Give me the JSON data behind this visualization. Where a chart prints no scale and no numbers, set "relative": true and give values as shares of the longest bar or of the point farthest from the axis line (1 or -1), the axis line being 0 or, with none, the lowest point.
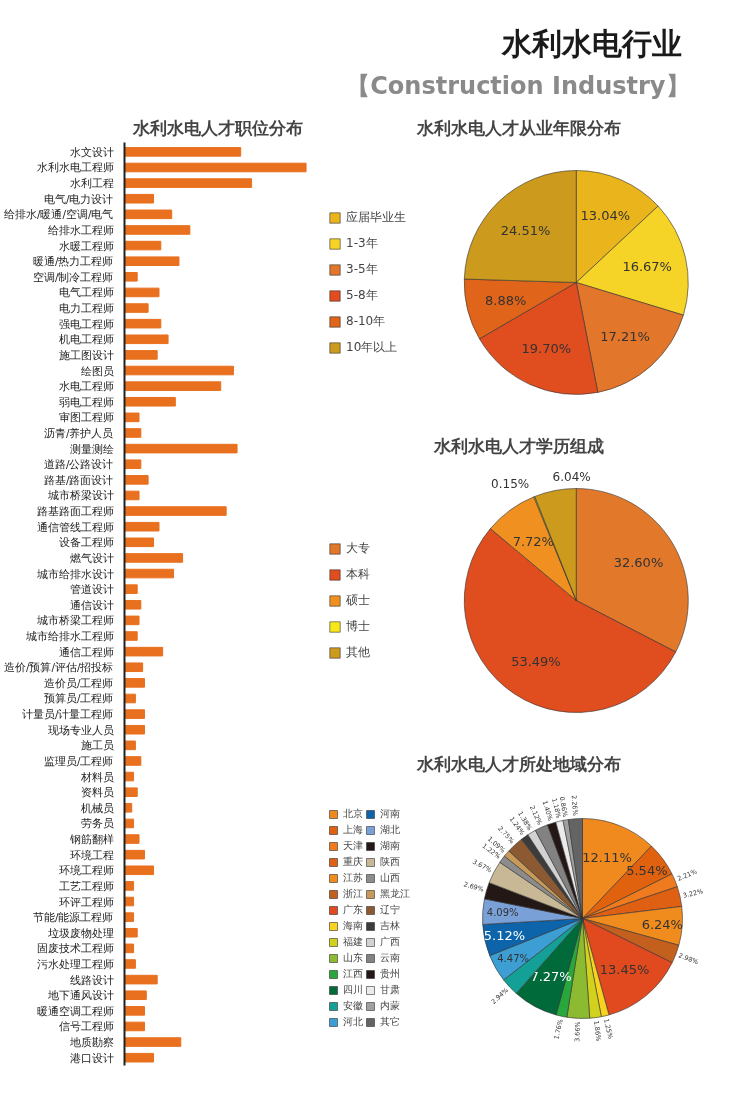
{
  "chart_data": [
    {
      "type": "other",
      "title": "水利水电行业",
      "subtitle": "【Construction Industry】"
    },
    {
      "type": "bar",
      "orientation": "horizontal",
      "relative": true,
      "title": "水利水电人才职位分布",
      "color": "#e8701e",
      "categories": [
        "水文设计",
        "水利水电工程师",
        "水利工程",
        "电气/电力设计",
        "给排水/暖通/空调/电气",
        "给排水工程师",
        "水暖工程师",
        "暖通/热力工程师",
        "空调/制冷工程师",
        "电气工程师",
        "电力工程师",
        "强电工程师",
        "机电工程师",
        "施工图设计",
        "绘图员",
        "水电工程师",
        "弱电工程师",
        "审图工程师",
        "沥青/养护人员",
        "测量测绘",
        "道路/公路设计",
        "路基/路面设计",
        "城市桥梁设计",
        "路基路面工程师",
        "通信管线工程师",
        "设备工程师",
        "燃气设计",
        "城市给排水设计",
        "管道设计",
        "通信设计",
        "城市桥梁工程师",
        "城市给排水工程师",
        "通信工程师",
        "造价/预算/评估/招投标",
        "造价员/工程师",
        "预算员/工程师",
        "计量员/计量工程师",
        "现场专业人员",
        "施工员",
        "监理员/工程师",
        "材料员",
        "资料员",
        "机械员",
        "劳务员",
        "钢筋翻样",
        "环境工程",
        "环境工程师",
        "工艺工程师",
        "环评工程师",
        "节能/能源工程师",
        "垃圾废物处理",
        "固废技术工程师",
        "污水处理工程师",
        "线路设计",
        "地下通风设计",
        "暖通空调工程师",
        "信号工程师",
        "地质勘察",
        "港口设计"
      ],
      "values": [
        0.64,
        1,
        0.7,
        0.16,
        0.26,
        0.36,
        0.2,
        0.3,
        0.07,
        0.19,
        0.13,
        0.2,
        0.24,
        0.18,
        0.6,
        0.53,
        0.28,
        0.08,
        0.09,
        0.62,
        0.09,
        0.13,
        0.08,
        0.56,
        0.19,
        0.16,
        0.32,
        0.27,
        0.07,
        0.09,
        0.08,
        0.07,
        0.21,
        0.1,
        0.11,
        0.06,
        0.11,
        0.11,
        0.06,
        0.09,
        0.05,
        0.07,
        0.04,
        0.05,
        0.08,
        0.11,
        0.16,
        0.05,
        0.05,
        0.05,
        0.07,
        0.05,
        0.06,
        0.18,
        0.12,
        0.11,
        0.11,
        0.31,
        0.16
      ]
    },
    {
      "type": "pie",
      "title": "水利水电人才从业年限分布",
      "legend": "left",
      "categories": [
        "应届毕业生",
        "1-3年",
        "3-5年",
        "5-8年",
        "8-10年",
        "10年以上"
      ],
      "values": [
        13.04,
        16.67,
        17.21,
        19.7,
        8.88,
        24.51
      ],
      "value_labels": [
        "13.04%",
        "16.67%",
        "17.21%",
        "19.70%",
        "8.88%",
        "24.51%"
      ],
      "colors": [
        "#e9b41c",
        "#f5d327",
        "#e2762a",
        "#e04d1f",
        "#e06419",
        "#cc9a1c"
      ]
    },
    {
      "type": "pie",
      "title": "水利水电人才学历组成",
      "legend": "left",
      "categories": [
        "大专",
        "本科",
        "硕士",
        "博士",
        "其他"
      ],
      "values": [
        32.6,
        53.49,
        7.72,
        0.15,
        6.04
      ],
      "value_labels": [
        "32.60%",
        "53.49%",
        "7.72%",
        "0.15%",
        "6.04%"
      ],
      "colors": [
        "#e2782a",
        "#e04d1f",
        "#f09020",
        "#f8e81a",
        "#cc9a1c"
      ]
    },
    {
      "type": "pie",
      "title": "水利水电人才所处地域分布",
      "legend": "left",
      "categories": [
        "北京",
        "上海",
        "天津",
        "重庆",
        "江苏",
        "浙江",
        "广东",
        "海南",
        "福建",
        "山东",
        "江西",
        "四川",
        "安徽",
        "河北",
        "河南",
        "湖北",
        "湖南",
        "陕西",
        "山西",
        "黑龙江",
        "辽宁",
        "吉林",
        "广西",
        "云南",
        "贵州",
        "甘肃",
        "内蒙",
        "其它"
      ],
      "values": [
        12.11,
        5.54,
        2.21,
        3.22,
        6.24,
        2.98,
        13.45,
        1.25,
        1.86,
        3.66,
        1.76,
        7.27,
        2.94,
        4.47,
        5.12,
        4.09,
        2.69,
        3.67,
        1.22,
        1.09,
        2.75,
        1.24,
        1.38,
        2.12,
        1.4,
        1.18,
        0.86,
        2.26
      ],
      "value_labels": [
        "12.11%",
        "5.54%",
        "2.21%",
        "3.22%",
        "6.24%",
        "2.98%",
        "13.45%",
        "1.25%",
        "1.86%",
        "3.66%",
        "1.76%",
        "7.27%",
        "2.94%",
        "4.47%",
        "5.12%",
        "4.09%",
        "2.69%",
        "3.67%",
        "1.22%",
        "1.09%",
        "2.75%",
        "1.24%",
        "1.38%",
        "2.12%",
        "1.40%",
        "1.18%",
        "0.86%",
        "2.26%"
      ],
      "colors": [
        "#f0891e",
        "#e0620f",
        "#f07a1e",
        "#df6012",
        "#f08c1e",
        "#c4601e",
        "#e04a1e",
        "#f8d21e",
        "#d2d21e",
        "#8cba30",
        "#28a83c",
        "#006a3a",
        "#14a096",
        "#3c9ed2",
        "#0e64aa",
        "#7aa0d8",
        "#231815",
        "#c8b896",
        "#8c8c8c",
        "#c89a5a",
        "#8c5a32",
        "#3c3c3c",
        "#d2d2d2",
        "#828282",
        "#231815",
        "#ebebeb",
        "#a0a0a0",
        "#646464"
      ]
    }
  ]
}
